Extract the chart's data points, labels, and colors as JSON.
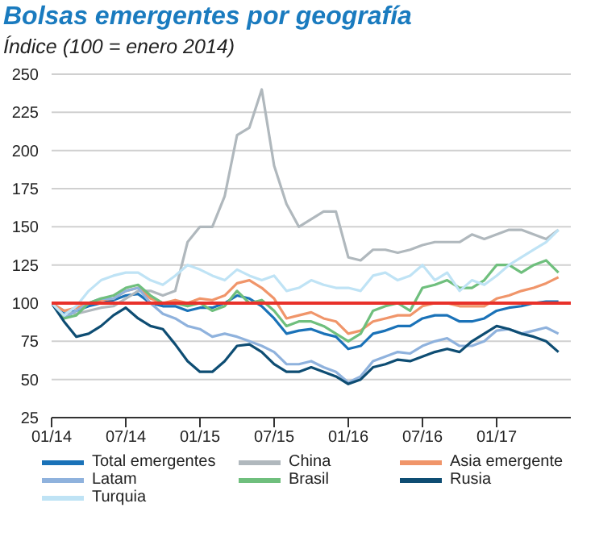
{
  "chart_data": {
    "type": "line",
    "title": "Bolsas emergentes por geografía",
    "subtitle": "Índice (100 = enero 2014)",
    "x": [
      "2014-01",
      "2014-02",
      "2014-03",
      "2014-04",
      "2014-05",
      "2014-06",
      "2014-07",
      "2014-08",
      "2014-09",
      "2014-10",
      "2014-11",
      "2014-12",
      "2015-01",
      "2015-02",
      "2015-03",
      "2015-04",
      "2015-05",
      "2015-06",
      "2015-07",
      "2015-08",
      "2015-09",
      "2015-10",
      "2015-11",
      "2015-12",
      "2016-01",
      "2016-02",
      "2016-03",
      "2016-04",
      "2016-05",
      "2016-06",
      "2016-07",
      "2016-08",
      "2016-09",
      "2016-10",
      "2016-11",
      "2016-12",
      "2017-01",
      "2017-02",
      "2017-03",
      "2017-04",
      "2017-05",
      "2017-06"
    ],
    "xlim": [
      "2014-01",
      "2017-07"
    ],
    "xticks": [
      {
        "value": "2014-01",
        "label": "01/14"
      },
      {
        "value": "2014-07",
        "label": "07/14"
      },
      {
        "value": "2015-01",
        "label": "01/15"
      },
      {
        "value": "2015-07",
        "label": "07/15"
      },
      {
        "value": "2016-01",
        "label": "01/16"
      },
      {
        "value": "2016-07",
        "label": "07/16"
      },
      {
        "value": "2017-01",
        "label": "01/17"
      }
    ],
    "ylim": [
      25,
      250
    ],
    "yticks": [
      25,
      50,
      75,
      100,
      125,
      150,
      175,
      200,
      225,
      250
    ],
    "grid": "y",
    "legend": "bottom",
    "line_style": "solid",
    "marker": "none",
    "ref_lines": [
      {
        "axis": "y",
        "value": 100,
        "color": "#e8312a"
      }
    ],
    "series": [
      {
        "name": "Total emergentes",
        "color": "#1a72b8",
        "values": [
          100,
          93,
          95,
          98,
          100,
          102,
          105,
          106,
          100,
          98,
          98,
          95,
          97,
          97,
          100,
          105,
          103,
          98,
          90,
          80,
          82,
          83,
          80,
          78,
          70,
          72,
          80,
          82,
          85,
          85,
          90,
          92,
          92,
          88,
          88,
          90,
          95,
          97,
          98,
          100,
          101,
          101
        ]
      },
      {
        "name": "China",
        "color": "#b0b8bd",
        "values": [
          100,
          95,
          93,
          95,
          97,
          98,
          103,
          108,
          108,
          105,
          108,
          140,
          150,
          150,
          170,
          210,
          215,
          240,
          190,
          165,
          150,
          155,
          160,
          160,
          130,
          128,
          135,
          135,
          133,
          135,
          138,
          140,
          140,
          140,
          145,
          142,
          145,
          148,
          148,
          145,
          142,
          148
        ]
      },
      {
        "name": "Asia emergente",
        "color": "#f0956a",
        "values": [
          100,
          95,
          97,
          100,
          102,
          103,
          108,
          110,
          103,
          100,
          102,
          100,
          103,
          102,
          105,
          113,
          115,
          110,
          103,
          90,
          92,
          94,
          90,
          88,
          80,
          82,
          88,
          90,
          92,
          92,
          98,
          100,
          100,
          98,
          98,
          98,
          103,
          105,
          108,
          110,
          113,
          117
        ]
      },
      {
        "name": "Latam",
        "color": "#8fb2dd",
        "values": [
          100,
          90,
          95,
          100,
          103,
          103,
          108,
          110,
          100,
          93,
          90,
          85,
          83,
          78,
          80,
          78,
          75,
          72,
          68,
          60,
          60,
          62,
          58,
          55,
          48,
          52,
          62,
          65,
          68,
          67,
          72,
          75,
          77,
          72,
          72,
          75,
          82,
          83,
          80,
          82,
          84,
          80
        ]
      },
      {
        "name": "Brasil",
        "color": "#6fbf7d",
        "values": [
          100,
          90,
          92,
          100,
          103,
          105,
          110,
          112,
          105,
          100,
          100,
          98,
          100,
          95,
          98,
          108,
          100,
          102,
          95,
          85,
          88,
          88,
          85,
          80,
          75,
          80,
          95,
          98,
          100,
          95,
          110,
          112,
          115,
          110,
          110,
          115,
          125,
          125,
          120,
          125,
          128,
          120
        ]
      },
      {
        "name": "Rusia",
        "color": "#0e4d73",
        "values": [
          100,
          88,
          78,
          80,
          85,
          92,
          97,
          90,
          85,
          83,
          73,
          62,
          55,
          55,
          62,
          72,
          73,
          68,
          60,
          55,
          55,
          58,
          55,
          52,
          47,
          50,
          58,
          60,
          63,
          62,
          65,
          68,
          70,
          68,
          75,
          80,
          85,
          83,
          80,
          78,
          75,
          68
        ]
      },
      {
        "name": "Turquia",
        "color": "#bfe3f5",
        "values": [
          100,
          92,
          98,
          108,
          115,
          118,
          120,
          120,
          115,
          112,
          118,
          125,
          122,
          118,
          115,
          122,
          118,
          115,
          118,
          108,
          110,
          115,
          112,
          110,
          110,
          108,
          118,
          120,
          115,
          118,
          125,
          115,
          120,
          108,
          115,
          112,
          118,
          125,
          130,
          135,
          140,
          148
        ]
      }
    ]
  }
}
